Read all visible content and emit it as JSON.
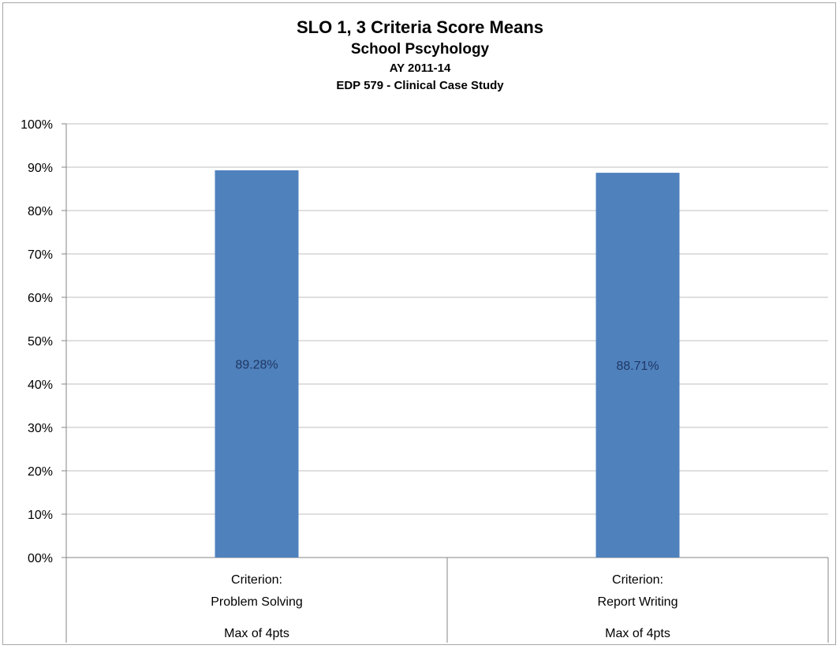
{
  "chart_data": {
    "type": "bar",
    "title": "SLO 1, 3 Criteria Score Means",
    "subtitle_lines": [
      "School Pscyhology",
      "AY 2011-14",
      "EDP 579 - Clinical Case Study"
    ],
    "categories": [
      {
        "lines": [
          "Criterion:",
          "Problem Solving"
        ],
        "sublabel": "Max of 4pts"
      },
      {
        "lines": [
          "Criterion:",
          "Report Writing"
        ],
        "sublabel": "Max of 4pts"
      }
    ],
    "values": [
      89.28,
      88.71
    ],
    "data_labels": [
      "89.28%",
      "88.71%"
    ],
    "ylim": [
      0,
      100
    ],
    "yticks": [
      "00%",
      "10%",
      "20%",
      "30%",
      "40%",
      "50%",
      "60%",
      "70%",
      "80%",
      "90%",
      "100%"
    ],
    "grid": true,
    "bar_color": "#4f81bd",
    "gridline_color": "#bfbfbf"
  }
}
